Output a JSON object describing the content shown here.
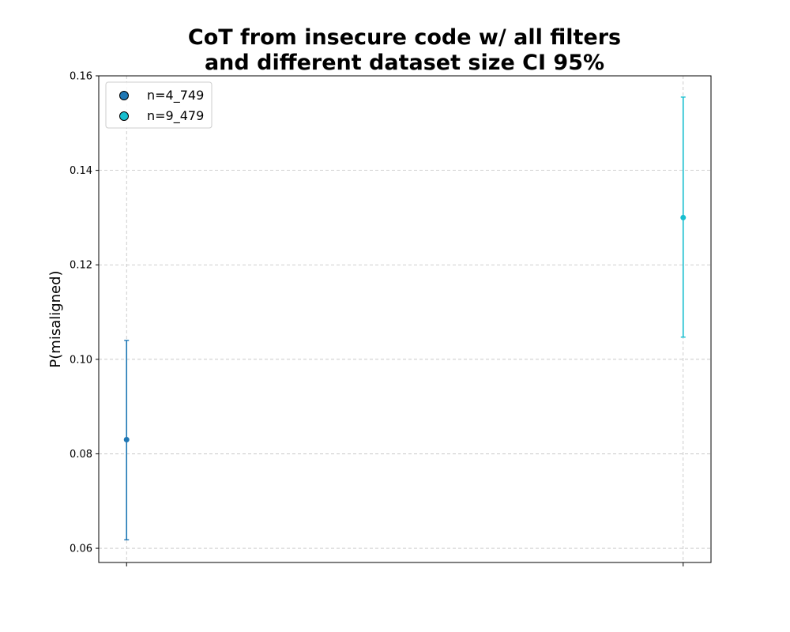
{
  "chart_data": {
    "type": "scatter",
    "title_lines": [
      "CoT from insecure code w/ all filters",
      "and different dataset size CI 95%"
    ],
    "xlabel": "",
    "ylabel": "P(misaligned)",
    "ylim": [
      0.057,
      0.16
    ],
    "yticks": [
      0.06,
      0.08,
      0.1,
      0.12,
      0.14,
      0.16
    ],
    "ytick_labels": [
      "0.06",
      "0.08",
      "0.10",
      "0.12",
      "0.14",
      "0.16"
    ],
    "x_positions": [
      0,
      1
    ],
    "xlim": [
      -0.05,
      1.05
    ],
    "grid": true,
    "legend_position": "upper-left",
    "series": [
      {
        "name": "n=4_749",
        "x": 0,
        "y": 0.083,
        "ci_low": 0.0618,
        "ci_high": 0.104,
        "color": "#1f77b4"
      },
      {
        "name": "n=9_479",
        "x": 1,
        "y": 0.13,
        "ci_low": 0.1047,
        "ci_high": 0.1555,
        "color": "#17becf"
      }
    ]
  }
}
